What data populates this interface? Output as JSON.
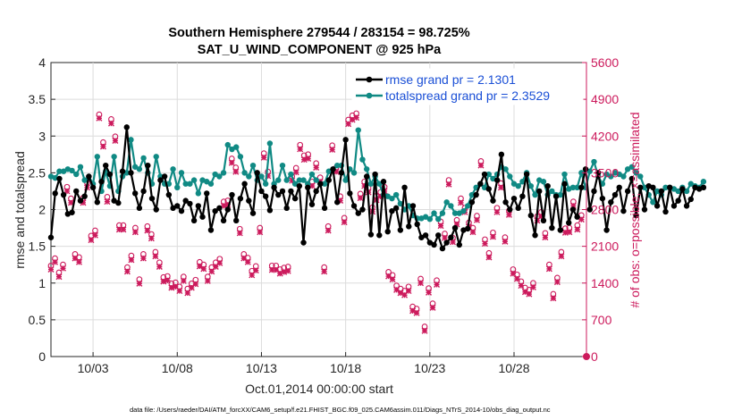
{
  "colors": {
    "rmse": "#000000",
    "spread": "#108a84",
    "obs": "#cc1a5c",
    "legend_text": "#1a4fd6",
    "axis": "#262626"
  },
  "chart_data": {
    "type": "line",
    "title_line1": "Southern Hemisphere 279544 / 283154 = 98.725%",
    "title_line2": "SAT_U_WIND_COMPONENT @ 925 hPa",
    "xlabel": "Oct.01,2014 00:00:00 start",
    "ylabel_left": "rmse and totalspread",
    "ylabel_right": "# of obs: o=possible; ×=assimilated",
    "footer": "data file: /Users/raeder/DAI/ATM_forcXX/CAM6_setup/f.e21.FHIST_BGC.f09_025.CAM6assim.011/Diags_NTrS_2014-10/obs_diag_output.nc",
    "xlim": [
      1,
      32.8
    ],
    "ylim_left": [
      0,
      4
    ],
    "ylim_right": [
      0,
      5600
    ],
    "x_ticks": [
      {
        "v": 3.5,
        "label": "10/03"
      },
      {
        "v": 8.5,
        "label": "10/08"
      },
      {
        "v": 13.5,
        "label": "10/13"
      },
      {
        "v": 18.5,
        "label": "10/18"
      },
      {
        "v": 23.5,
        "label": "10/23"
      },
      {
        "v": 28.5,
        "label": "10/28"
      }
    ],
    "y_left_ticks": [
      "0",
      "0.5",
      "1",
      "1.5",
      "2",
      "2.5",
      "3",
      "3.5",
      "4"
    ],
    "y_left_tick_values": [
      0,
      0.5,
      1,
      1.5,
      2,
      2.5,
      3,
      3.5,
      4
    ],
    "y_right_ticks": [
      "0",
      "700",
      "1400",
      "2100",
      "2800",
      "3500",
      "4200",
      "4900",
      "5600"
    ],
    "y_right_tick_values": [
      0,
      700,
      1400,
      2100,
      2800,
      3500,
      4200,
      4900,
      5600
    ],
    "legend": [
      {
        "name": "rmse grand pr = 2.1301",
        "series": "rmse"
      },
      {
        "name": "totalspread grand pr = 2.3529",
        "series": "spread"
      }
    ],
    "x_start": 1.0,
    "x_step": 0.25,
    "series": [
      {
        "name": "rmse",
        "values": [
          1.62,
          2.22,
          2.42,
          2.2,
          1.94,
          1.96,
          2.25,
          2.12,
          2.18,
          2.45,
          2.3,
          2.1,
          2.38,
          2.6,
          2.48,
          2.12,
          2.09,
          2.52,
          3.12,
          2.5,
          2.22,
          2.02,
          2.25,
          2.6,
          2.15,
          2.0,
          2.4,
          2.45,
          2.2,
          2.02,
          2.05,
          1.98,
          2.12,
          2.08,
          1.85,
          2.05,
          1.9,
          2.22,
          1.72,
          1.98,
          2.02,
          1.85,
          2.0,
          2.2,
          1.85,
          2.15,
          2.35,
          2.12,
          1.95,
          2.5,
          2.25,
          2.18,
          1.99,
          2.3,
          2.2,
          2.25,
          2.02,
          2.25,
          2.15,
          2.32,
          1.55,
          2.3,
          2.07,
          2.25,
          2.35,
          2.02,
          2.4,
          2.55,
          2.1,
          2.5,
          2.95,
          2.22,
          2.05,
          1.95,
          2.0,
          2.45,
          1.66,
          2.48,
          1.65,
          2.38,
          1.7,
          1.98,
          2.02,
          1.72,
          2.3,
          1.77,
          2.05,
          1.8,
          1.62,
          1.65,
          1.55,
          1.52,
          1.65,
          1.47,
          1.55,
          1.62,
          1.75,
          1.52,
          1.72,
          1.74,
          2.1,
          2.2,
          2.35,
          2.48,
          2.28,
          2.12,
          2.4,
          2.75,
          2.1,
          2.0,
          2.15,
          2.02,
          2.18,
          2.48,
          1.92,
          1.65,
          2.25,
          1.85,
          2.32,
          1.75,
          2.18,
          1.72,
          2.35,
          1.82,
          2.0,
          1.9,
          2.3,
          2.55,
          2.0,
          2.25,
          2.5,
          2.15,
          1.72,
          2.1,
          2.2,
          2.3,
          1.98,
          2.25,
          2.42,
          1.92,
          2.3,
          2.0,
          2.32,
          2.3,
          2.05,
          2.25,
          1.97,
          2.3,
          2.05,
          2.12,
          2.28,
          2.05,
          2.14,
          2.3,
          2.28,
          2.3
        ]
      },
      {
        "name": "totalspread",
        "values": [
          2.45,
          2.43,
          2.52,
          2.52,
          2.55,
          2.53,
          2.48,
          2.58,
          2.4,
          2.45,
          2.35,
          2.72,
          2.25,
          2.52,
          2.32,
          2.72,
          2.25,
          2.45,
          2.5,
          2.95,
          2.58,
          2.55,
          2.7,
          2.5,
          2.35,
          2.72,
          2.45,
          2.35,
          2.35,
          2.55,
          2.3,
          2.5,
          2.35,
          2.35,
          2.4,
          2.22,
          2.4,
          2.38,
          2.35,
          2.48,
          2.45,
          2.5,
          2.88,
          2.82,
          2.85,
          2.72,
          2.5,
          2.45,
          2.6,
          2.4,
          2.45,
          2.35,
          2.9,
          2.35,
          2.4,
          2.6,
          2.4,
          2.48,
          2.35,
          2.4,
          2.4,
          2.35,
          2.48,
          2.4,
          2.35,
          2.35,
          2.52,
          2.55,
          2.6,
          2.6,
          2.4,
          2.55,
          2.5,
          3.08,
          2.68,
          2.55,
          2.35,
          2.45,
          2.35,
          2.2,
          2.18,
          2.15,
          2.2,
          2.08,
          2.0,
          2.05,
          1.92,
          1.88,
          1.88,
          1.9,
          1.87,
          1.95,
          1.87,
          1.95,
          2.1,
          2.05,
          1.95,
          1.95,
          1.98,
          2.05,
          2.2,
          2.3,
          2.35,
          2.3,
          2.48,
          2.42,
          2.48,
          2.58,
          2.55,
          2.45,
          2.35,
          2.32,
          2.38,
          2.5,
          2.32,
          2.2,
          2.4,
          2.38,
          2.2,
          2.25,
          2.2,
          2.2,
          2.48,
          2.28,
          2.3,
          2.3,
          2.5,
          2.3,
          2.52,
          2.65,
          2.45,
          2.35,
          2.48,
          2.45,
          2.5,
          2.48,
          2.45,
          2.55,
          2.58,
          2.5,
          2.45,
          2.3,
          2.2,
          2.1,
          2.25,
          2.2,
          2.3,
          2.3,
          2.28,
          2.25,
          2.3,
          2.25,
          2.35,
          2.32,
          2.3,
          2.38
        ]
      },
      {
        "name": "possible",
        "values": [
          1680,
          1820,
          1550,
          1700,
          3180,
          2960,
          1900,
          1840,
          2970,
          3260,
          2250,
          2350,
          4560,
          4030,
          2990,
          4470,
          4140,
          2450,
          2450,
          1650,
          1870,
          2400,
          1420,
          1900,
          2430,
          2280,
          1940,
          1740,
          1460,
          1480,
          1340,
          1360,
          1280,
          1470,
          1240,
          1340,
          1410,
          1750,
          1700,
          1470,
          1650,
          1740,
          1810,
          2900,
          2920,
          3720,
          3550,
          2380,
          1900,
          1830,
          1580,
          1670,
          2400,
          3820,
          3470,
          1680,
          1680,
          1610,
          1640,
          1660,
          3380,
          3540,
          3980,
          3780,
          3800,
          3280,
          3630,
          3360,
          1650,
          2430,
          3970,
          3550,
          3000,
          2590,
          4460,
          4540,
          4580,
          3050,
          3280,
          3160,
          2790,
          3010,
          3080,
          3180,
          1560,
          1500,
          1300,
          1240,
          1200,
          1280,
          900,
          860,
          1430,
          520,
          1250,
          960,
          1400,
          2520,
          2290,
          3310,
          2210,
          2550,
          2960,
          2780,
          2500,
          2400,
          2630,
          3670,
          2180,
          1920,
          2310,
          2780,
          3250,
          2220,
          2730,
          1610,
          1510,
          1380,
          1260,
          1220,
          1350,
          2620,
          2700,
          2300,
          1700,
          1140,
          1450,
          1940,
          2390,
          2400,
          2900,
          2450,
          2640
        ]
      },
      {
        "name": "assimilated",
        "values": [
          1660,
          1800,
          1520,
          1680,
          3150,
          2930,
          1870,
          1800,
          2930,
          3220,
          2220,
          2310,
          4540,
          4000,
          2950,
          4440,
          4110,
          2420,
          2420,
          1620,
          1840,
          2370,
          1390,
          1870,
          2400,
          2250,
          1910,
          1710,
          1430,
          1450,
          1310,
          1330,
          1250,
          1440,
          1210,
          1310,
          1380,
          1720,
          1670,
          1440,
          1620,
          1710,
          1780,
          2870,
          2890,
          3690,
          3520,
          2350,
          1870,
          1800,
          1550,
          1640,
          2370,
          3790,
          3440,
          1650,
          1650,
          1580,
          1610,
          1630,
          3350,
          3510,
          3950,
          3750,
          3770,
          3250,
          3600,
          3330,
          1620,
          2400,
          3940,
          3520,
          2970,
          2560,
          4430,
          4510,
          4550,
          3020,
          3250,
          3130,
          2760,
          2980,
          3050,
          3150,
          1530,
          1470,
          1270,
          1210,
          1170,
          1250,
          870,
          830,
          1400,
          490,
          1220,
          930,
          1370,
          2490,
          2260,
          3280,
          2180,
          2520,
          2930,
          2750,
          2470,
          2370,
          2600,
          3640,
          2150,
          1890,
          2280,
          2750,
          3220,
          2190,
          2700,
          1580,
          1480,
          1350,
          1230,
          1190,
          1320,
          2590,
          2670,
          2270,
          1670,
          1110,
          1420,
          1910,
          2360,
          2370,
          2870,
          2420,
          2610
        ]
      }
    ]
  }
}
